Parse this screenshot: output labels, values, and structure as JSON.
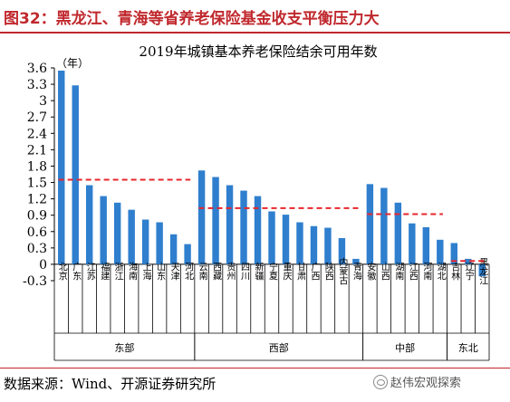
{
  "figure": {
    "title": "图32：黑龙江、青海等省养老保险基金收支平衡压力大",
    "source": "数据来源：Wind、开源证券研究所",
    "watermark": "赵伟宏观探索"
  },
  "chart_data": {
    "type": "bar",
    "title": "2019年城镇基本养老保险结余可用年数",
    "ylabel": "（年）",
    "ylim": [
      -0.3,
      3.6
    ],
    "yticks": [
      -0.3,
      0,
      0.3,
      0.6,
      0.9,
      1.2,
      1.5,
      1.8,
      2.1,
      2.4,
      2.7,
      3,
      3.3,
      3.6
    ],
    "ytick_labels": [
      "-0.3",
      "0",
      "0.3",
      "0.6",
      "0.9",
      "1.2",
      "1.5",
      "1.8",
      "2.1",
      "2.4",
      "2.7",
      "3",
      "3.3",
      "3.6"
    ],
    "bar_color": "#2f7fce",
    "average_line_color": "#e8262b",
    "grid": false,
    "legend": "none",
    "categories": [
      "北京",
      "广东",
      "江苏",
      "福建",
      "浙江",
      "海南",
      "上海",
      "山东",
      "天津",
      "河北",
      "云南",
      "西藏",
      "贵州",
      "四川",
      "新疆",
      "宁夏",
      "重庆",
      "甘肃",
      "广西",
      "陕西",
      "内蒙古",
      "青海",
      "安徽",
      "山西",
      "湖南",
      "江西",
      "河南",
      "湖北",
      "吉林",
      "辽宁",
      "黑龙江"
    ],
    "values": [
      3.55,
      3.28,
      1.45,
      1.25,
      1.13,
      1.0,
      0.82,
      0.77,
      0.55,
      0.37,
      1.72,
      1.6,
      1.45,
      1.35,
      1.25,
      0.97,
      0.91,
      0.77,
      0.7,
      0.67,
      0.48,
      0.1,
      1.47,
      1.4,
      1.13,
      0.75,
      0.68,
      0.45,
      0.39,
      0.1,
      -0.22
    ],
    "regions": [
      {
        "name": "东部",
        "start": 0,
        "end": 9,
        "average": 1.55
      },
      {
        "name": "西部",
        "start": 10,
        "end": 21,
        "average": 1.03
      },
      {
        "name": "中部",
        "start": 22,
        "end": 27,
        "average": 0.92
      },
      {
        "name": "东北",
        "start": 28,
        "end": 30,
        "average": 0.06
      }
    ]
  }
}
